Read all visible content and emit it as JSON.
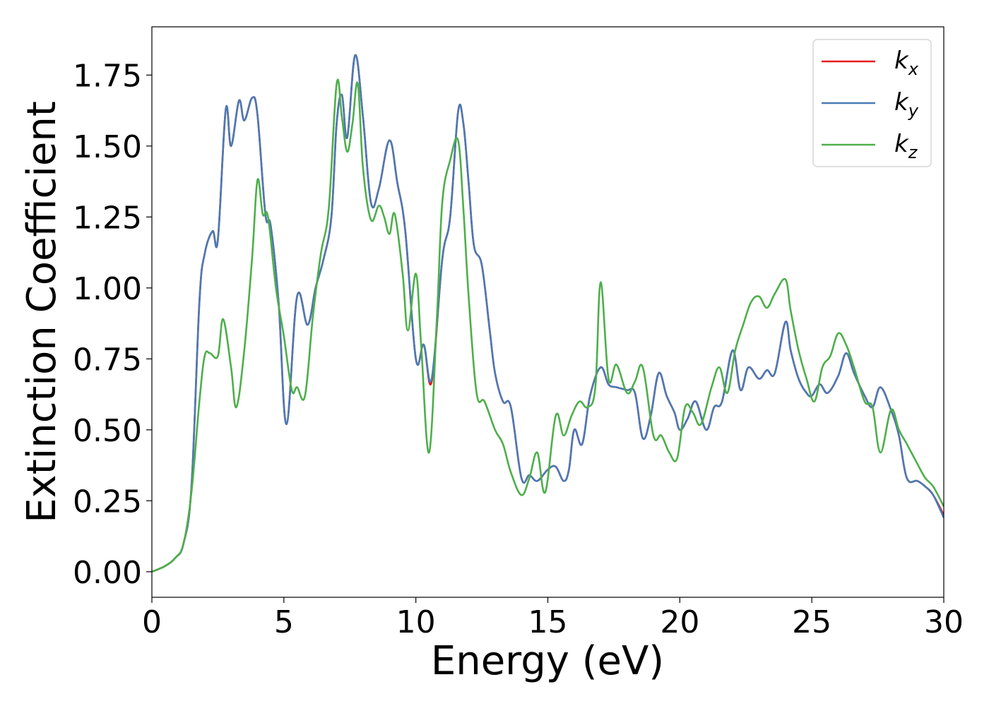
{
  "chart_data": {
    "type": "line",
    "xlabel": "Energy (eV)",
    "ylabel": "Extinction Coefficient",
    "xlim": [
      0,
      30
    ],
    "ylim": [
      -0.09,
      1.92
    ],
    "xticks": [
      0,
      5,
      10,
      15,
      20,
      25,
      30
    ],
    "xtick_labels": [
      "0",
      "5",
      "10",
      "15",
      "20",
      "25",
      "30"
    ],
    "yticks": [
      0.0,
      0.25,
      0.5,
      0.75,
      1.0,
      1.25,
      1.5,
      1.75
    ],
    "ytick_labels": [
      "0.00",
      "0.25",
      "0.50",
      "0.75",
      "1.00",
      "1.25",
      "1.50",
      "1.75"
    ],
    "grid": false,
    "legend_position": "top-right",
    "series": [
      {
        "name": "k_x",
        "legend_base": "k",
        "legend_sub": "x",
        "color": "#e41a1c",
        "x": [
          0,
          0.5,
          0.9,
          1.2,
          1.5,
          1.8,
          2.0,
          2.3,
          2.5,
          2.8,
          3.0,
          3.3,
          3.5,
          3.8,
          4.0,
          4.3,
          4.5,
          4.8,
          5.1,
          5.5,
          5.9,
          6.2,
          6.5,
          6.8,
          7.0,
          7.2,
          7.4,
          7.7,
          8.0,
          8.3,
          8.6,
          9.0,
          9.3,
          9.6,
          10.0,
          10.3,
          10.6,
          11.0,
          11.3,
          11.6,
          11.8,
          12.0,
          12.2,
          12.5,
          12.8,
          13.0,
          13.3,
          13.6,
          14.0,
          14.3,
          14.6,
          15.0,
          15.3,
          15.6,
          15.8,
          16.0,
          16.3,
          16.6,
          17.0,
          17.3,
          17.6,
          18.0,
          18.3,
          18.6,
          18.9,
          19.2,
          19.5,
          19.8,
          20.0,
          20.3,
          20.6,
          21.0,
          21.3,
          21.6,
          22.0,
          22.3,
          22.6,
          23.0,
          23.3,
          23.6,
          24.0,
          24.2,
          24.5,
          24.8,
          25.0,
          25.3,
          25.6,
          26.0,
          26.3,
          26.6,
          27.0,
          27.3,
          27.6,
          28.0,
          28.3,
          28.6,
          29.0,
          29.3,
          29.6,
          30.0
        ],
        "y": [
          0.0,
          0.02,
          0.05,
          0.1,
          0.3,
          0.95,
          1.12,
          1.2,
          1.17,
          1.63,
          1.5,
          1.66,
          1.59,
          1.67,
          1.61,
          1.26,
          1.22,
          0.95,
          0.52,
          0.97,
          0.87,
          1.0,
          1.1,
          1.25,
          1.58,
          1.68,
          1.53,
          1.82,
          1.6,
          1.3,
          1.35,
          1.52,
          1.37,
          1.2,
          0.75,
          0.8,
          0.67,
          1.1,
          1.25,
          1.62,
          1.58,
          1.37,
          1.15,
          1.08,
          0.85,
          0.7,
          0.6,
          0.58,
          0.33,
          0.34,
          0.32,
          0.36,
          0.37,
          0.32,
          0.36,
          0.5,
          0.45,
          0.62,
          0.72,
          0.66,
          0.65,
          0.64,
          0.63,
          0.47,
          0.55,
          0.7,
          0.62,
          0.56,
          0.5,
          0.54,
          0.6,
          0.5,
          0.58,
          0.6,
          0.78,
          0.64,
          0.72,
          0.68,
          0.71,
          0.7,
          0.88,
          0.78,
          0.68,
          0.63,
          0.62,
          0.66,
          0.63,
          0.69,
          0.77,
          0.7,
          0.62,
          0.58,
          0.65,
          0.57,
          0.48,
          0.33,
          0.32,
          0.3,
          0.27,
          0.2
        ]
      },
      {
        "name": "k_y",
        "legend_base": "k",
        "legend_sub": "y",
        "color": "#4a7ab5",
        "x": [
          0,
          0.5,
          0.9,
          1.2,
          1.5,
          1.8,
          2.0,
          2.3,
          2.5,
          2.8,
          3.0,
          3.3,
          3.5,
          3.8,
          4.0,
          4.3,
          4.5,
          4.8,
          5.1,
          5.5,
          5.9,
          6.2,
          6.5,
          6.8,
          7.0,
          7.2,
          7.4,
          7.7,
          8.0,
          8.3,
          8.6,
          9.0,
          9.3,
          9.6,
          10.0,
          10.3,
          10.6,
          11.0,
          11.3,
          11.6,
          11.8,
          12.0,
          12.2,
          12.5,
          12.8,
          13.0,
          13.3,
          13.6,
          14.0,
          14.3,
          14.6,
          15.0,
          15.3,
          15.6,
          15.8,
          16.0,
          16.3,
          16.6,
          17.0,
          17.3,
          17.6,
          18.0,
          18.3,
          18.6,
          18.9,
          19.2,
          19.5,
          19.8,
          20.0,
          20.3,
          20.6,
          21.0,
          21.3,
          21.6,
          22.0,
          22.3,
          22.6,
          23.0,
          23.3,
          23.6,
          24.0,
          24.2,
          24.5,
          24.8,
          25.0,
          25.3,
          25.6,
          26.0,
          26.3,
          26.6,
          27.0,
          27.3,
          27.6,
          28.0,
          28.3,
          28.6,
          29.0,
          29.3,
          29.6,
          30.0
        ],
        "y": [
          0.0,
          0.02,
          0.05,
          0.1,
          0.3,
          0.95,
          1.12,
          1.2,
          1.17,
          1.63,
          1.5,
          1.66,
          1.59,
          1.67,
          1.61,
          1.26,
          1.22,
          0.95,
          0.52,
          0.97,
          0.87,
          1.0,
          1.1,
          1.25,
          1.58,
          1.68,
          1.53,
          1.82,
          1.6,
          1.3,
          1.35,
          1.52,
          1.37,
          1.2,
          0.75,
          0.8,
          0.68,
          1.1,
          1.25,
          1.62,
          1.58,
          1.37,
          1.15,
          1.08,
          0.85,
          0.7,
          0.6,
          0.58,
          0.33,
          0.34,
          0.32,
          0.36,
          0.37,
          0.32,
          0.36,
          0.5,
          0.45,
          0.62,
          0.72,
          0.66,
          0.65,
          0.64,
          0.63,
          0.47,
          0.55,
          0.7,
          0.62,
          0.56,
          0.5,
          0.54,
          0.6,
          0.5,
          0.58,
          0.6,
          0.78,
          0.64,
          0.72,
          0.68,
          0.71,
          0.7,
          0.88,
          0.78,
          0.68,
          0.63,
          0.62,
          0.66,
          0.63,
          0.69,
          0.77,
          0.7,
          0.62,
          0.58,
          0.65,
          0.57,
          0.48,
          0.33,
          0.32,
          0.3,
          0.27,
          0.19
        ]
      },
      {
        "name": "k_z",
        "legend_base": "k",
        "legend_sub": "z",
        "color": "#4daf4a",
        "x": [
          0,
          0.5,
          0.9,
          1.2,
          1.5,
          1.8,
          2.0,
          2.2,
          2.5,
          2.7,
          3.0,
          3.2,
          3.5,
          3.8,
          4.0,
          4.2,
          4.4,
          4.7,
          5.0,
          5.3,
          5.5,
          5.8,
          6.1,
          6.4,
          6.7,
          7.0,
          7.2,
          7.4,
          7.6,
          7.8,
          8.0,
          8.3,
          8.6,
          8.8,
          9.0,
          9.2,
          9.5,
          9.7,
          10.0,
          10.2,
          10.5,
          10.8,
          11.0,
          11.3,
          11.6,
          11.8,
          12.0,
          12.3,
          12.6,
          13.0,
          13.3,
          13.6,
          14.0,
          14.3,
          14.6,
          14.9,
          15.3,
          15.6,
          15.9,
          16.2,
          16.5,
          16.8,
          17.0,
          17.3,
          17.6,
          18.0,
          18.3,
          18.6,
          19.0,
          19.3,
          19.6,
          19.9,
          20.2,
          20.5,
          20.8,
          21.2,
          21.5,
          21.8,
          22.1,
          22.4,
          22.7,
          23.0,
          23.3,
          23.6,
          24.0,
          24.2,
          24.5,
          24.8,
          25.1,
          25.4,
          25.7,
          26.0,
          26.3,
          26.6,
          27.0,
          27.3,
          27.6,
          28.0,
          28.3,
          28.6,
          29.0,
          29.3,
          29.6,
          30.0
        ],
        "y": [
          0.0,
          0.02,
          0.05,
          0.1,
          0.28,
          0.6,
          0.76,
          0.77,
          0.76,
          0.89,
          0.72,
          0.58,
          0.78,
          1.11,
          1.38,
          1.26,
          1.25,
          1.0,
          0.83,
          0.64,
          0.65,
          0.62,
          0.9,
          1.12,
          1.28,
          1.72,
          1.6,
          1.48,
          1.58,
          1.72,
          1.42,
          1.24,
          1.29,
          1.25,
          1.19,
          1.26,
          1.05,
          0.85,
          1.05,
          0.8,
          0.42,
          0.9,
          1.3,
          1.45,
          1.52,
          1.28,
          0.97,
          0.63,
          0.6,
          0.5,
          0.45,
          0.35,
          0.27,
          0.33,
          0.42,
          0.28,
          0.55,
          0.48,
          0.55,
          0.6,
          0.58,
          0.65,
          1.02,
          0.68,
          0.73,
          0.63,
          0.67,
          0.72,
          0.48,
          0.48,
          0.42,
          0.4,
          0.58,
          0.56,
          0.52,
          0.65,
          0.72,
          0.63,
          0.78,
          0.87,
          0.95,
          0.97,
          0.93,
          0.98,
          1.03,
          0.92,
          0.78,
          0.68,
          0.6,
          0.72,
          0.76,
          0.84,
          0.8,
          0.72,
          0.6,
          0.58,
          0.42,
          0.57,
          0.5,
          0.45,
          0.38,
          0.33,
          0.3,
          0.23
        ]
      }
    ]
  }
}
